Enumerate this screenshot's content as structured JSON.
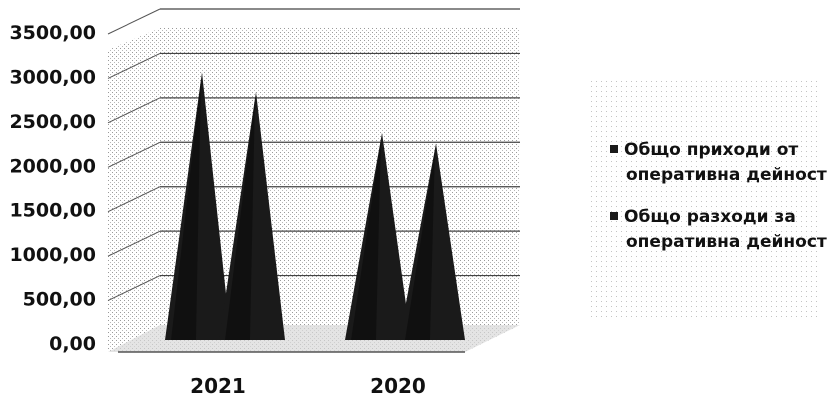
{
  "chart_data": {
    "type": "bar",
    "bar_shape": "cone",
    "categories": [
      "2021",
      "2020"
    ],
    "series": [
      {
        "name": [
          "Общо приходи от",
          "оперативна дейност"
        ],
        "values": [
          3180,
          2500
        ],
        "color": "#1a1a1a"
      },
      {
        "name": [
          "Общо разходи за",
          "оперативна дейност"
        ],
        "values": [
          2960,
          2380
        ],
        "color": "#1a1a1a"
      }
    ],
    "y_ticks": [
      "0,00",
      "500,00",
      "1000,00",
      "1500,00",
      "2000,00",
      "2500,00",
      "3000,00",
      "3500,00"
    ],
    "ylim": [
      0,
      3500
    ],
    "grid": true,
    "legend_position": "right"
  }
}
